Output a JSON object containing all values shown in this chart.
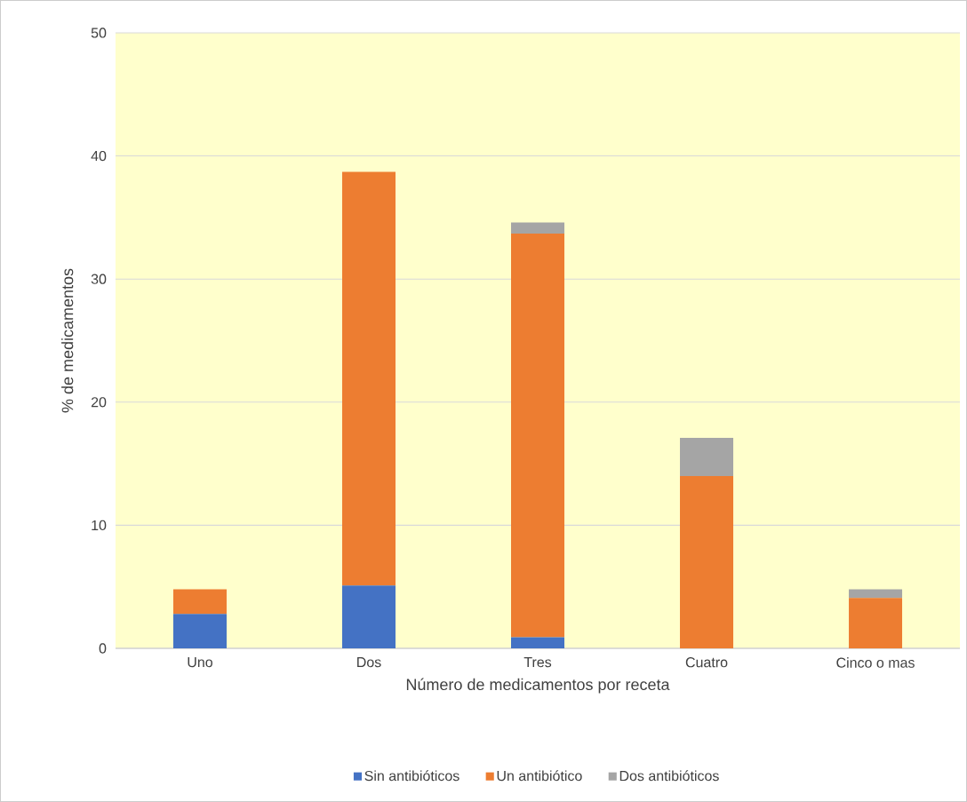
{
  "chart_data": {
    "type": "bar",
    "stacked": true,
    "xlabel": "Número de medicamentos por receta",
    "ylabel": "% de medicamentos",
    "categories": [
      "Uno",
      "Dos",
      "Tres",
      "Cuatro",
      "Cinco o mas"
    ],
    "series": [
      {
        "name": "Sin antibióticos",
        "color": "#4472c4",
        "values": [
          2.8,
          5.1,
          0.9,
          0,
          0
        ]
      },
      {
        "name": "Un antibiótico",
        "color": "#ed7d31",
        "values": [
          2.0,
          33.6,
          32.8,
          14.0,
          4.1
        ]
      },
      {
        "name": "Dos antibióticos",
        "color": "#a5a5a5",
        "values": [
          0,
          0,
          0.9,
          3.1,
          0.7
        ]
      }
    ],
    "ylim": [
      0,
      50
    ],
    "yticks": [
      0,
      10,
      20,
      30,
      40,
      50
    ],
    "grid": "y",
    "legend": "bottom"
  }
}
